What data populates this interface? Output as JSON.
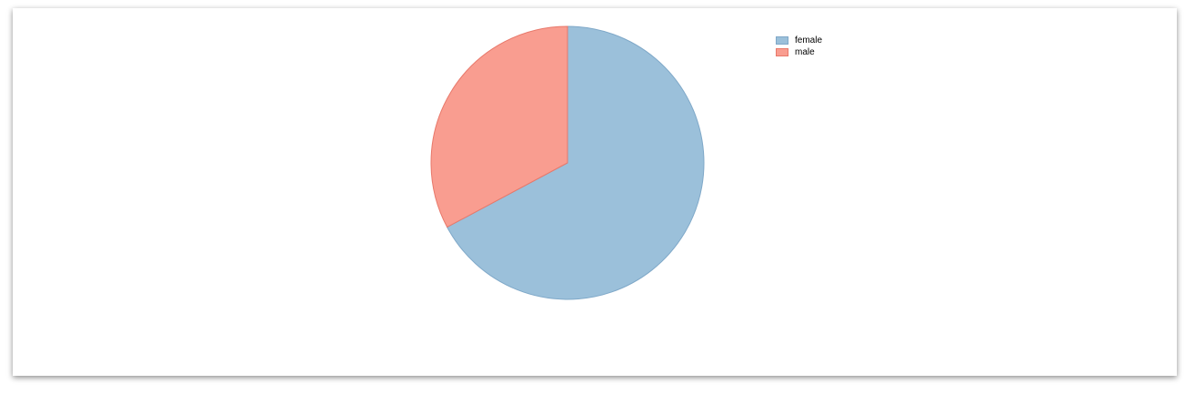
{
  "chart_data": {
    "type": "pie",
    "title": "",
    "categories": [
      "female",
      "male"
    ],
    "values": [
      67.2,
      32.8
    ],
    "colors": [
      "#9bc0da",
      "#f99d90"
    ],
    "stroke_colors": [
      "#7fa8c8",
      "#e8786a"
    ],
    "start_angle": "top",
    "direction": "clockwise",
    "legend_position": "top-right"
  }
}
